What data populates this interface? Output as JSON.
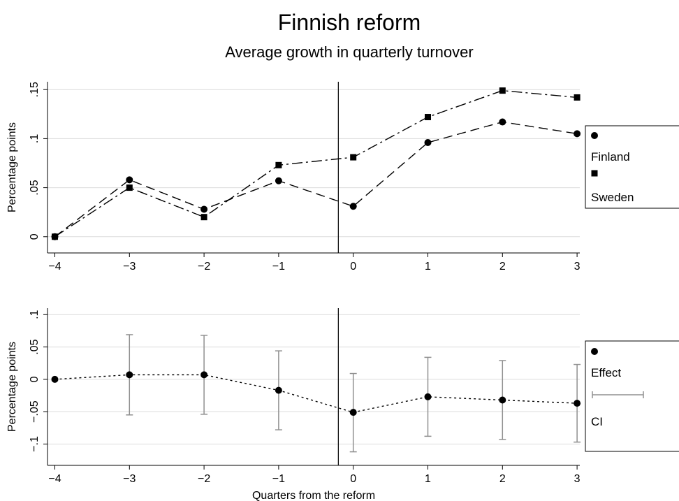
{
  "title": "Finnish reform",
  "subtitle": "Average growth in quarterly turnover",
  "xlabel": "Quarters from the reform",
  "chart_data": [
    {
      "type": "line",
      "title": "Finnish reform",
      "subtitle": "Average growth in quarterly turnover",
      "ylabel": "Percentage points",
      "xlabel": "",
      "x": [
        -4,
        -3,
        -2,
        -1,
        0,
        1,
        2,
        3
      ],
      "xlim": [
        -4.1,
        3.1
      ],
      "ylim": [
        -0.008,
        0.158
      ],
      "yticks": [
        0,
        0.05,
        0.1,
        0.15
      ],
      "yticklabels": [
        "0",
        ".05",
        ".1",
        ".15"
      ],
      "xticklabels": [
        "−4",
        "−3",
        "−2",
        "−1",
        "0",
        "1",
        "2",
        "3"
      ],
      "reference_line_x": -0.2,
      "grid": true,
      "legend_position": "right",
      "series": [
        {
          "name": "Finland",
          "marker": "circle",
          "dash": "dashed",
          "values": [
            0.0,
            0.058,
            0.028,
            0.057,
            0.031,
            0.096,
            0.117,
            0.105
          ]
        },
        {
          "name": "Sweden",
          "marker": "square",
          "dash": "dash-dot",
          "values": [
            0.0,
            0.05,
            0.02,
            0.073,
            0.081,
            0.122,
            0.149,
            0.142
          ]
        }
      ]
    },
    {
      "type": "scatter",
      "ylabel": "Percentage points",
      "xlabel": "Quarters from the reform",
      "x": [
        -4,
        -3,
        -2,
        -1,
        0,
        1,
        2,
        3
      ],
      "xlim": [
        -4.1,
        3.1
      ],
      "ylim": [
        -0.12,
        0.11
      ],
      "yticks": [
        -0.1,
        -0.05,
        0,
        0.05,
        0.1
      ],
      "yticklabels": [
        "−.1",
        "−.05",
        "0",
        ".05",
        ".1"
      ],
      "xticklabels": [
        "−4",
        "−3",
        "−2",
        "−1",
        "0",
        "1",
        "2",
        "3"
      ],
      "reference_line_x": -0.2,
      "grid": true,
      "legend_position": "right",
      "series": [
        {
          "name": "Effect",
          "marker": "circle",
          "dash": "dotted",
          "values": [
            0.0,
            0.007,
            0.007,
            -0.017,
            -0.051,
            -0.027,
            -0.032,
            -0.037
          ]
        },
        {
          "name": "CI",
          "marker": "capped-range",
          "lower": [
            null,
            -0.055,
            -0.054,
            -0.078,
            -0.112,
            -0.088,
            -0.093,
            -0.097
          ],
          "upper": [
            null,
            0.069,
            0.068,
            0.044,
            0.009,
            0.034,
            0.029,
            0.023
          ]
        }
      ]
    }
  ],
  "legend_top": [
    {
      "label": "Finland",
      "icon": "circle-marker-icon"
    },
    {
      "label": "Sweden",
      "icon": "square-marker-icon"
    }
  ],
  "legend_bottom": [
    {
      "label": "Effect",
      "icon": "circle-marker-icon"
    },
    {
      "label": "CI",
      "icon": "capped-range-icon"
    }
  ],
  "colors": {
    "line": "#000000",
    "grid": "#dcdcdc",
    "ci": "#909090"
  }
}
